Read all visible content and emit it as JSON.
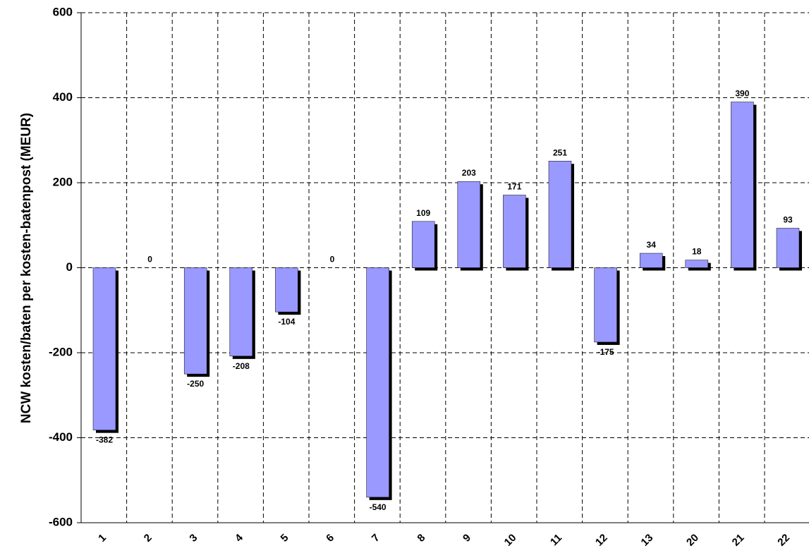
{
  "chart_data": {
    "type": "bar",
    "y_label": "NCW kosten/baten per kosten-batenpost (MEUR)",
    "categories": [
      "1",
      "2",
      "3",
      "4",
      "5",
      "6",
      "7",
      "8",
      "9",
      "10",
      "11",
      "12",
      "13",
      "20",
      "21",
      "22"
    ],
    "values": [
      -382,
      0,
      -250,
      -208,
      -104,
      0,
      -540,
      109,
      203,
      171,
      251,
      -175,
      34,
      18,
      390,
      93
    ],
    "color": "#9999ff",
    "ylim": [
      -600,
      600
    ],
    "yticks": [
      -600,
      -400,
      -200,
      0,
      200,
      400,
      600
    ],
    "grid": true
  }
}
